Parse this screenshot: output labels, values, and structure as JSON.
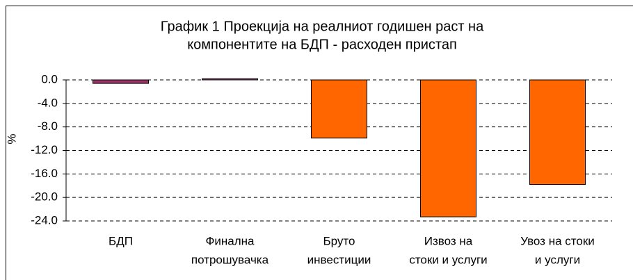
{
  "chart_data": {
    "type": "bar",
    "title": [
      "График 1 Проекција на реалниот годишен раст на",
      "компонентите на БДП - расходен пристап"
    ],
    "y_label": "%",
    "categories": [
      [
        "БДП"
      ],
      [
        "Финална",
        "потрошувачка"
      ],
      [
        "Бруто",
        "инвестиции"
      ],
      [
        "Извоз на",
        "стоки и услуги"
      ],
      [
        "Увоз на стоки",
        "и услуги"
      ]
    ],
    "values": [
      -0.6,
      0.2,
      -9.9,
      -23.3,
      -17.8
    ],
    "colors": [
      "#993366",
      "#993366",
      "#ff6600",
      "#ff6600",
      "#ff6600"
    ],
    "ylim": [
      -24,
      0
    ],
    "yticks": [
      {
        "value": 0,
        "label": "0.0"
      },
      {
        "value": -4,
        "label": "-4.0"
      },
      {
        "value": -8,
        "label": "-8.0"
      },
      {
        "value": -12,
        "label": "-12.0"
      },
      {
        "value": -16,
        "label": "-16.0"
      },
      {
        "value": -20,
        "label": "-20.0"
      },
      {
        "value": -24,
        "label": "-24.0"
      }
    ],
    "grid": true
  }
}
